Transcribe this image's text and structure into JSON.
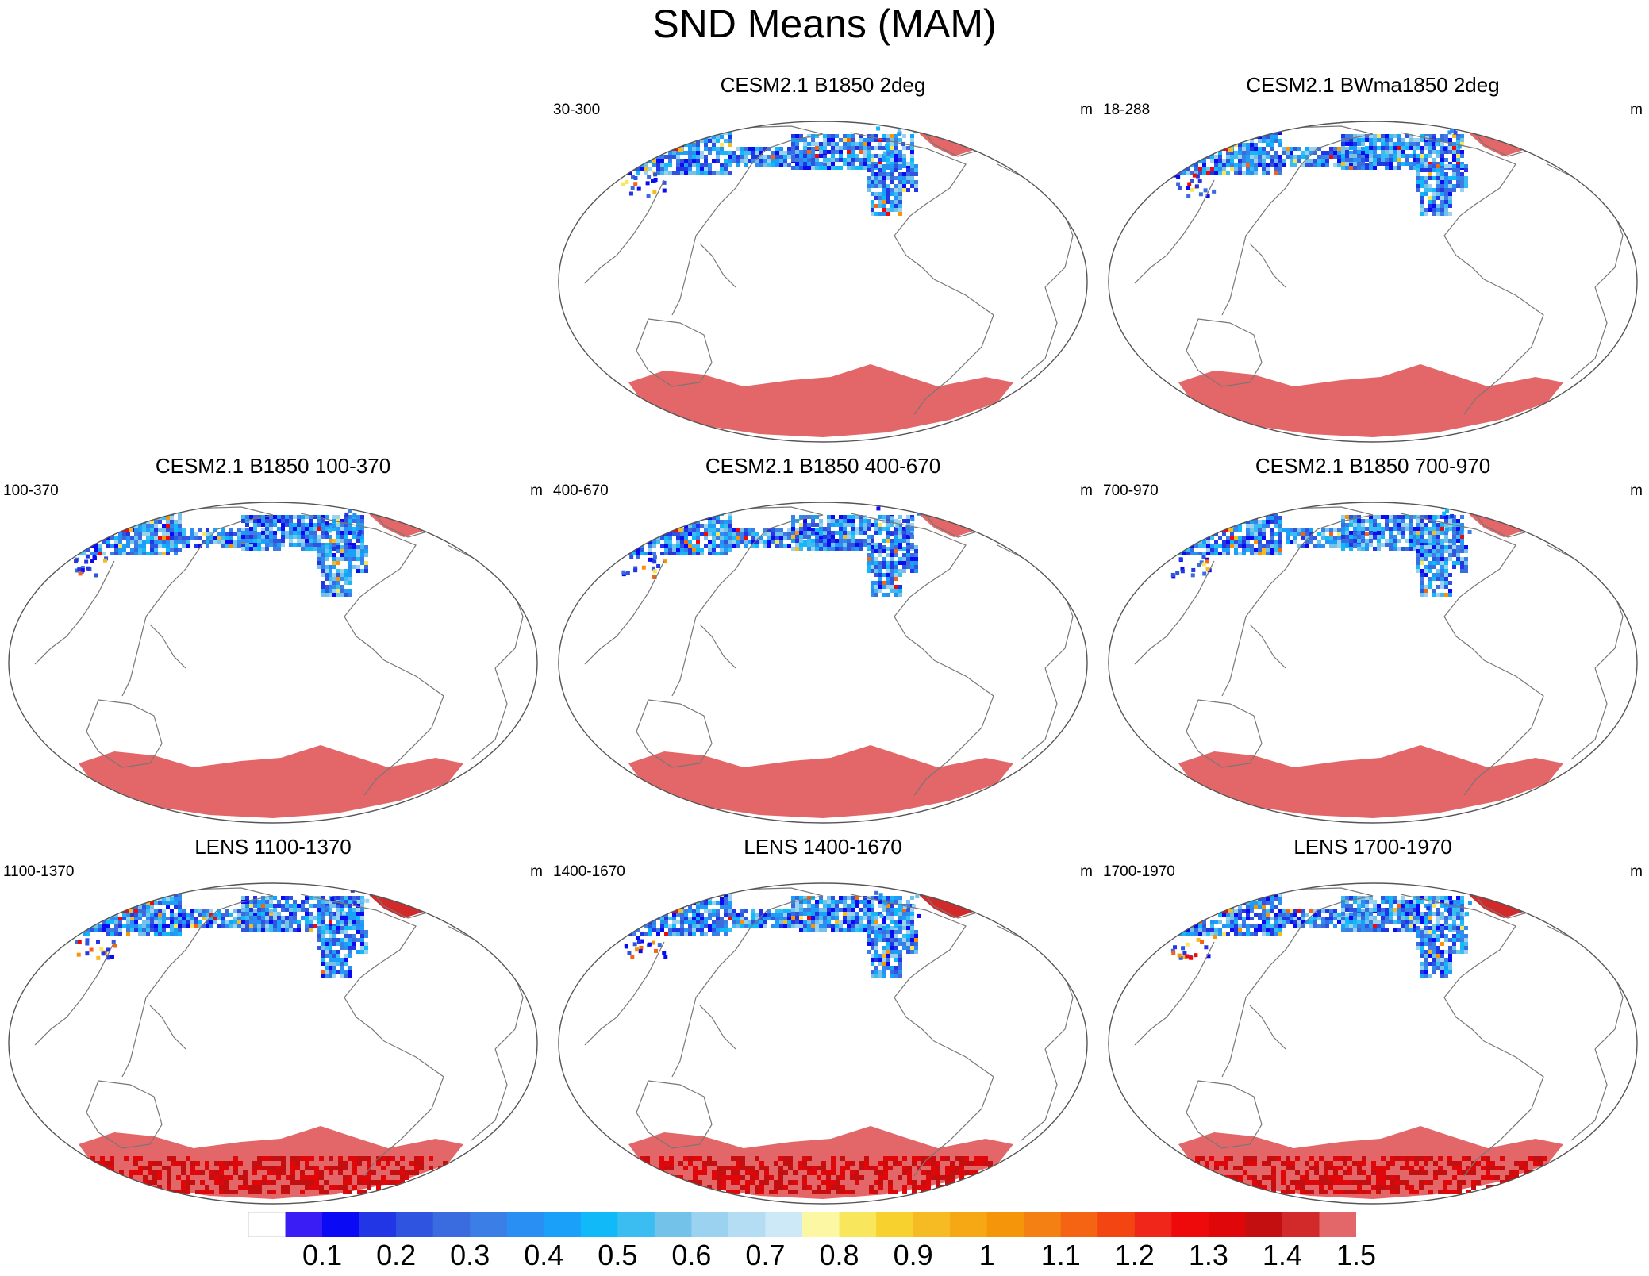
{
  "title": "SND Means (MAM)",
  "units": "m",
  "panels": [
    {
      "title": "CESM2.1 B1850 2deg",
      "range": "30-300",
      "variant": "a"
    },
    {
      "title": "CESM2.1 BWma1850 2deg",
      "range": "18-288",
      "variant": "a"
    },
    {
      "title": "CESM2.1 B1850 100-370",
      "range": "100-370",
      "variant": "b"
    },
    {
      "title": "CESM2.1 B1850 400-670",
      "range": "400-670",
      "variant": "b"
    },
    {
      "title": "CESM2.1 B1850 700-970",
      "range": "700-970",
      "variant": "b"
    },
    {
      "title": "LENS 1100-1370",
      "range": "1100-1370",
      "variant": "c"
    },
    {
      "title": "LENS 1400-1670",
      "range": "1400-1670",
      "variant": "c"
    },
    {
      "title": "LENS 1700-1970",
      "range": "1700-1970",
      "variant": "c"
    }
  ],
  "colorbar": {
    "labels": [
      "0.1",
      "0.2",
      "0.3",
      "0.4",
      "0.5",
      "0.6",
      "0.7",
      "0.8",
      "0.9",
      "1",
      "1.1",
      "1.2",
      "1.3",
      "1.4",
      "1.5"
    ],
    "colors": [
      "#ffffff",
      "#3a1cf5",
      "#0a0af5",
      "#2336e6",
      "#2f55e0",
      "#3a6cdf",
      "#3a7ee6",
      "#2a8ff3",
      "#1aa0f8",
      "#12b9f8",
      "#3cbdf2",
      "#72c2ea",
      "#9bd2ef",
      "#b4ddf3",
      "#cde8f7",
      "#fbf7a3",
      "#f8e65d",
      "#f7d22f",
      "#f6bb23",
      "#f6a714",
      "#f59509",
      "#f47f12",
      "#f46412",
      "#f34511",
      "#f1261a",
      "#ee0a0a",
      "#e0070a",
      "#c40f10",
      "#d22a2b",
      "#e36668"
    ]
  }
}
